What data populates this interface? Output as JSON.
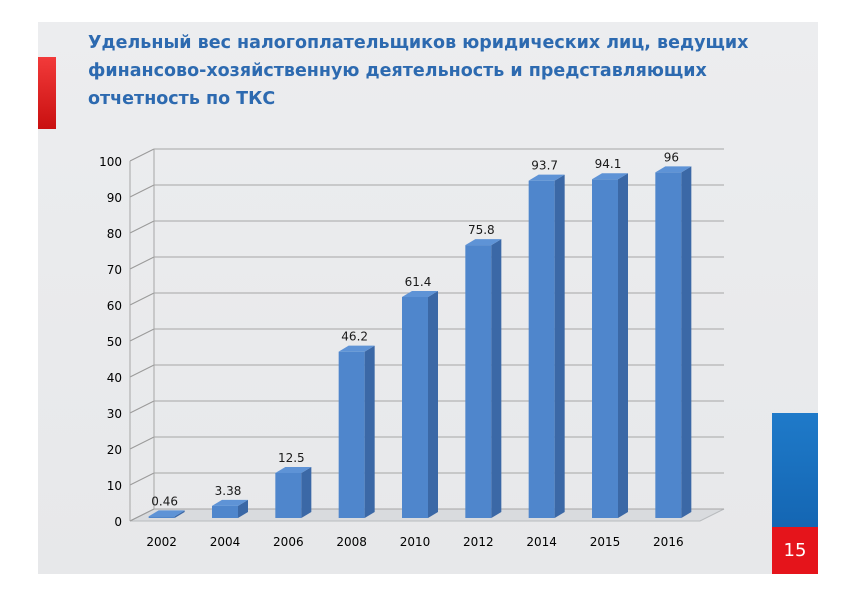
{
  "slide": {
    "title_lines": [
      "Удельный вес налогоплательщиков юридических лиц, ведущих",
      "финансово-хозяйственную деятельность и представляющих",
      "отчетность по ТКС"
    ],
    "page_number": "15",
    "colors": {
      "title": "#2d6ab0",
      "accent_red": "#e5141b",
      "accent_blue": "#1f7ac9",
      "bar": "#4f86cc"
    }
  },
  "chart_data": {
    "type": "bar",
    "style": "3d",
    "title": "",
    "xlabel": "",
    "ylabel": "",
    "categories": [
      "2002",
      "2004",
      "2006",
      "2008",
      "2010",
      "2012",
      "2014",
      "2015",
      "2016"
    ],
    "values": [
      0.46,
      3.38,
      12.5,
      46.2,
      61.4,
      75.8,
      93.7,
      94.1,
      96
    ],
    "value_labels": [
      "0.46",
      "3.38",
      "12.5",
      "46.2",
      "61.4",
      "75.8",
      "93.7",
      "94.1",
      "96"
    ],
    "ylim": [
      0,
      100
    ],
    "yticks": [
      "0",
      "10",
      "20",
      "30",
      "40",
      "50",
      "60",
      "70",
      "80",
      "90",
      "100"
    ],
    "grid": true,
    "legend": "none"
  }
}
